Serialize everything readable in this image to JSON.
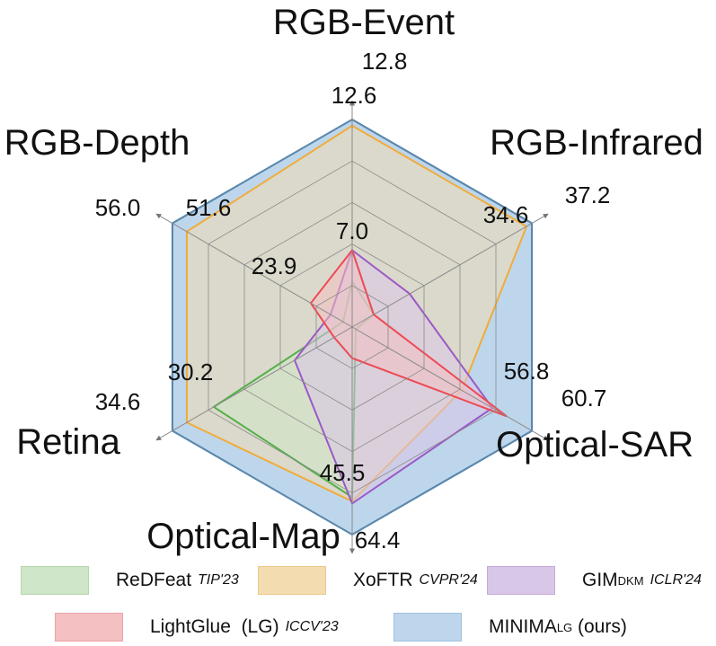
{
  "chart_data": {
    "type": "radar",
    "axes": [
      {
        "name": "RGB-Event",
        "max_label": "12.8",
        "inner_label": "12.6",
        "min_label": ""
      },
      {
        "name": "RGB-Infrared",
        "max_label": "37.2",
        "inner_label": "34.6",
        "min_label": ""
      },
      {
        "name": "Optical-SAR",
        "max_label": "60.7",
        "inner_label": "56.8",
        "min_label": ""
      },
      {
        "name": "Optical-Map",
        "max_label": "64.4",
        "inner_label": "45.5",
        "min_label": ""
      },
      {
        "name": "Retina",
        "max_label": "34.6",
        "inner_label": "30.2",
        "min_label": ""
      },
      {
        "name": "RGB-Depth",
        "max_label": "56.0",
        "inner_label": "51.6",
        "min_label": "23.9"
      }
    ],
    "extra_labels": [
      {
        "axis": 0,
        "text": "7.0"
      }
    ],
    "scale": "normalized radius per axis (0 = center, 1 = outer hexagon)",
    "grid_levels": 5,
    "series": [
      {
        "name": "ReDFeat",
        "venue": "TIP'23",
        "fill": "#cfe6c8",
        "stroke": "#55b04a",
        "values": [
          0.22,
          0.12,
          0.02,
          0.82,
          0.77,
          0.05
        ]
      },
      {
        "name": "XoFTR",
        "venue": "CVPR'24",
        "fill": "#f3dcb0",
        "stroke": "#f0ac3a",
        "values": [
          0.97,
          0.97,
          0.61,
          0.84,
          0.92,
          0.92
        ]
      },
      {
        "name": "GIM",
        "sub": "DKM",
        "venue": "ICLR'24",
        "fill": "#d9c7e8",
        "stroke": "#9b59c6",
        "values": [
          0.37,
          0.32,
          0.78,
          0.85,
          0.32,
          0.12
        ]
      },
      {
        "name": "LightGlue  (LG)",
        "venue": "ICCV'23",
        "fill": "#f4c0c2",
        "stroke": "#ee4a55",
        "values": [
          0.37,
          0.12,
          0.86,
          0.15,
          0.1,
          0.23
        ]
      },
      {
        "name": "MINIMA",
        "sub": "LG",
        "suffix": " (ours)",
        "venue": "",
        "fill": "#bed6eb",
        "stroke": "#2f7fc1",
        "values": [
          1.0,
          1.0,
          1.0,
          1.0,
          1.0,
          1.0
        ]
      }
    ]
  }
}
